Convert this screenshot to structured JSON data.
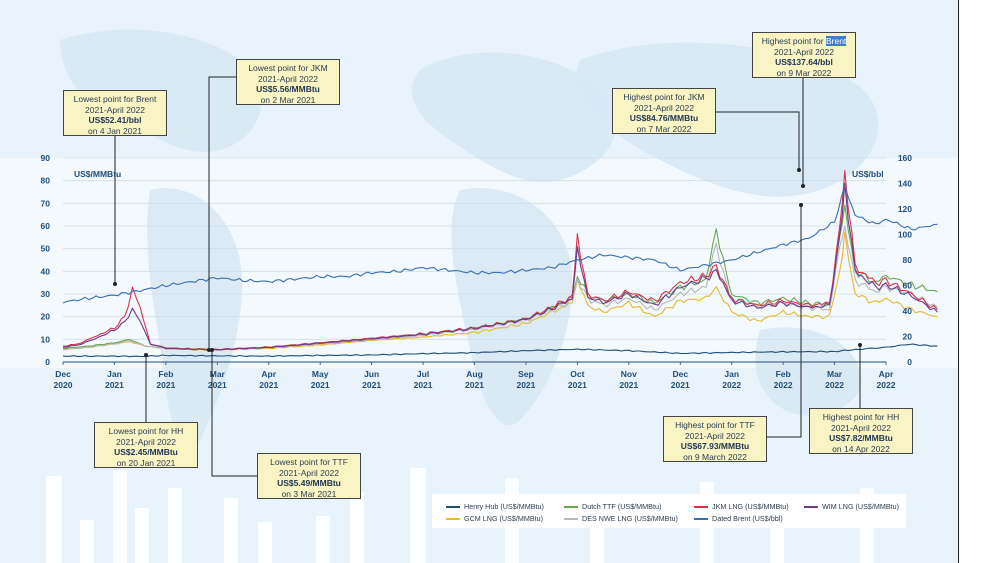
{
  "chart_data": {
    "type": "line",
    "left_axis_label": "US$/MMBtu",
    "right_axis_label": "US$/bbl",
    "y_left_range": [
      0,
      90
    ],
    "y_right_range": [
      0,
      160
    ],
    "y_left_ticks": [
      "0",
      "10",
      "20",
      "30",
      "40",
      "50",
      "60",
      "70",
      "80",
      "90"
    ],
    "y_right_ticks": [
      "0",
      "20",
      "40",
      "60",
      "80",
      "100",
      "120",
      "140",
      "160"
    ],
    "x_ticks": [
      {
        "m": "Dec",
        "y": "2020"
      },
      {
        "m": "Jan",
        "y": "2021"
      },
      {
        "m": "Feb",
        "y": "2021"
      },
      {
        "m": "Mar",
        "y": "2021"
      },
      {
        "m": "Apr",
        "y": "2021"
      },
      {
        "m": "May",
        "y": "2021"
      },
      {
        "m": "Jun",
        "y": "2021"
      },
      {
        "m": "Jul",
        "y": "2021"
      },
      {
        "m": "Aug",
        "y": "2021"
      },
      {
        "m": "Sep",
        "y": "2021"
      },
      {
        "m": "Oct",
        "y": "2021"
      },
      {
        "m": "Nov",
        "y": "2021"
      },
      {
        "m": "Dec",
        "y": "2021"
      },
      {
        "m": "Jan",
        "y": "2022"
      },
      {
        "m": "Feb",
        "y": "2022"
      },
      {
        "m": "Mar",
        "y": "2022"
      },
      {
        "m": "Apr",
        "y": "2022"
      }
    ],
    "grid": true,
    "series": [
      {
        "name": "Henry Hub (US$/MMBtu)",
        "axis": "left",
        "color": "#1f4e79",
        "points": [
          [
            0,
            2.6
          ],
          [
            1,
            2.6
          ],
          [
            1.5,
            2.45
          ],
          [
            2,
            2.9
          ],
          [
            3,
            2.7
          ],
          [
            4,
            2.6
          ],
          [
            5,
            2.9
          ],
          [
            6,
            3.1
          ],
          [
            7,
            3.7
          ],
          [
            8,
            4.1
          ],
          [
            9,
            5.0
          ],
          [
            10,
            5.6
          ],
          [
            10.5,
            5.3
          ],
          [
            11,
            5.0
          ],
          [
            12,
            3.8
          ],
          [
            12.5,
            4.0
          ],
          [
            13,
            4.2
          ],
          [
            14,
            4.5
          ],
          [
            15,
            4.6
          ],
          [
            15.4,
            5.5
          ],
          [
            16,
            6.5
          ],
          [
            16.45,
            7.82
          ],
          [
            17,
            7.0
          ]
        ]
      },
      {
        "name": "GCM LNG (US$/MMBtu)",
        "axis": "left",
        "color": "#e6b92e",
        "points": [
          [
            0,
            5.5
          ],
          [
            0.5,
            6.5
          ],
          [
            1,
            8
          ],
          [
            1.3,
            9
          ],
          [
            1.6,
            7
          ],
          [
            2,
            6
          ],
          [
            2.5,
            5.5
          ],
          [
            3,
            5.3
          ],
          [
            4,
            6
          ],
          [
            5,
            7.5
          ],
          [
            6,
            9.5
          ],
          [
            7,
            11
          ],
          [
            8,
            13
          ],
          [
            9,
            17
          ],
          [
            9.5,
            22
          ],
          [
            9.9,
            26
          ],
          [
            10,
            36
          ],
          [
            10.2,
            25
          ],
          [
            10.5,
            22
          ],
          [
            11,
            26
          ],
          [
            11.5,
            20
          ],
          [
            12,
            27
          ],
          [
            12.5,
            28
          ],
          [
            12.7,
            33
          ],
          [
            13,
            22
          ],
          [
            13.5,
            18
          ],
          [
            14,
            22
          ],
          [
            14.5,
            20
          ],
          [
            14.9,
            20
          ],
          [
            15.1,
            40
          ],
          [
            15.2,
            55
          ],
          [
            15.4,
            30
          ],
          [
            15.8,
            26
          ],
          [
            16,
            28
          ],
          [
            16.5,
            23
          ],
          [
            17,
            20
          ]
        ]
      },
      {
        "name": "Dutch TTF (US$/MMBtu)",
        "axis": "left",
        "color": "#6aa84f",
        "points": [
          [
            0,
            6
          ],
          [
            0.5,
            7
          ],
          [
            1,
            8.5
          ],
          [
            1.3,
            10
          ],
          [
            1.6,
            7
          ],
          [
            2,
            6.2
          ],
          [
            2.5,
            5.8
          ],
          [
            3,
            5.49
          ],
          [
            4,
            6.5
          ],
          [
            5,
            8.5
          ],
          [
            6,
            10
          ],
          [
            7,
            12
          ],
          [
            8,
            15
          ],
          [
            9,
            19
          ],
          [
            9.5,
            24
          ],
          [
            9.9,
            28
          ],
          [
            10,
            38
          ],
          [
            10.2,
            30
          ],
          [
            10.5,
            27
          ],
          [
            11,
            30
          ],
          [
            11.5,
            26
          ],
          [
            12,
            33
          ],
          [
            12.5,
            36
          ],
          [
            12.7,
            59
          ],
          [
            12.9,
            38
          ],
          [
            13,
            30
          ],
          [
            13.5,
            26
          ],
          [
            14,
            28
          ],
          [
            14.5,
            26
          ],
          [
            14.9,
            25
          ],
          [
            15.1,
            55
          ],
          [
            15.2,
            67.93
          ],
          [
            15.4,
            40
          ],
          [
            15.8,
            35
          ],
          [
            16,
            38
          ],
          [
            16.5,
            34
          ],
          [
            17,
            31
          ]
        ]
      },
      {
        "name": "DES NWE LNG (US$/MMBtu)",
        "axis": "left",
        "color": "#b7b7b7",
        "points": [
          [
            0,
            5.5
          ],
          [
            0.5,
            6.5
          ],
          [
            1,
            8
          ],
          [
            1.3,
            9.5
          ],
          [
            1.6,
            7
          ],
          [
            2,
            6
          ],
          [
            2.5,
            5.6
          ],
          [
            3,
            5.4
          ],
          [
            4,
            6.2
          ],
          [
            5,
            8
          ],
          [
            6,
            9.8
          ],
          [
            7,
            11.8
          ],
          [
            8,
            14.5
          ],
          [
            9,
            18.5
          ],
          [
            9.5,
            23
          ],
          [
            9.9,
            27
          ],
          [
            10,
            37
          ],
          [
            10.2,
            28
          ],
          [
            10.5,
            25
          ],
          [
            11,
            28
          ],
          [
            11.5,
            23
          ],
          [
            12,
            30
          ],
          [
            12.5,
            33
          ],
          [
            12.7,
            52
          ],
          [
            12.9,
            34
          ],
          [
            13,
            28
          ],
          [
            13.5,
            24
          ],
          [
            14,
            26
          ],
          [
            14.5,
            24
          ],
          [
            14.9,
            23
          ],
          [
            15.1,
            50
          ],
          [
            15.2,
            60
          ],
          [
            15.4,
            36
          ],
          [
            15.8,
            31
          ],
          [
            16,
            33
          ],
          [
            16.5,
            30
          ],
          [
            17,
            24
          ]
        ]
      },
      {
        "name": "JKM LNG (US$/MMBtu)",
        "axis": "left",
        "color": "#d9334a",
        "points": [
          [
            0,
            7
          ],
          [
            0.3,
            8
          ],
          [
            0.6,
            11
          ],
          [
            1,
            15
          ],
          [
            1.2,
            20
          ],
          [
            1.35,
            32
          ],
          [
            1.5,
            24
          ],
          [
            1.7,
            8
          ],
          [
            2,
            6.2
          ],
          [
            2.5,
            5.8
          ],
          [
            3,
            5.56
          ],
          [
            4,
            6.6
          ],
          [
            5,
            8.5
          ],
          [
            6,
            10.5
          ],
          [
            7,
            12.5
          ],
          [
            8,
            15
          ],
          [
            9,
            19
          ],
          [
            9.5,
            24
          ],
          [
            9.9,
            29
          ],
          [
            10,
            56
          ],
          [
            10.2,
            30
          ],
          [
            10.5,
            27
          ],
          [
            11,
            31
          ],
          [
            11.5,
            27
          ],
          [
            12,
            35
          ],
          [
            12.5,
            38
          ],
          [
            12.7,
            42
          ],
          [
            12.9,
            33
          ],
          [
            13,
            28
          ],
          [
            13.5,
            25
          ],
          [
            14,
            27
          ],
          [
            14.5,
            25
          ],
          [
            14.9,
            26
          ],
          [
            15.1,
            58
          ],
          [
            15.2,
            84.76
          ],
          [
            15.4,
            42
          ],
          [
            15.8,
            35
          ],
          [
            16,
            36
          ],
          [
            16.5,
            30
          ],
          [
            17,
            23
          ]
        ]
      },
      {
        "name": "WIM LNG (US$/MMBtu)",
        "axis": "left",
        "color": "#6b3a8c",
        "points": [
          [
            0,
            6.5
          ],
          [
            0.3,
            7.5
          ],
          [
            0.6,
            10
          ],
          [
            1,
            14
          ],
          [
            1.2,
            18
          ],
          [
            1.35,
            23
          ],
          [
            1.5,
            18
          ],
          [
            1.7,
            8
          ],
          [
            2,
            6
          ],
          [
            2.5,
            5.6
          ],
          [
            3,
            5.4
          ],
          [
            4,
            6.4
          ],
          [
            5,
            8.3
          ],
          [
            6,
            10.2
          ],
          [
            7,
            12.2
          ],
          [
            8,
            14.8
          ],
          [
            9,
            18.8
          ],
          [
            9.5,
            23.5
          ],
          [
            9.9,
            28
          ],
          [
            10,
            50
          ],
          [
            10.2,
            29
          ],
          [
            10.5,
            26
          ],
          [
            11,
            30
          ],
          [
            11.5,
            25
          ],
          [
            12,
            33
          ],
          [
            12.5,
            37
          ],
          [
            12.7,
            40
          ],
          [
            12.9,
            32
          ],
          [
            13,
            27
          ],
          [
            13.5,
            24
          ],
          [
            14,
            26
          ],
          [
            14.5,
            24
          ],
          [
            14.9,
            25
          ],
          [
            15.1,
            55
          ],
          [
            15.2,
            78
          ],
          [
            15.4,
            40
          ],
          [
            15.8,
            33
          ],
          [
            16,
            34
          ],
          [
            16.5,
            29
          ],
          [
            17,
            22
          ]
        ]
      },
      {
        "name": "Dated Brent (US$/bbl)",
        "axis": "right",
        "color": "#3a6fb0",
        "points": [
          [
            0,
            47
          ],
          [
            0.5,
            50
          ],
          [
            1,
            52.41
          ],
          [
            1.5,
            56
          ],
          [
            2,
            60
          ],
          [
            2.5,
            63
          ],
          [
            3,
            66
          ],
          [
            3.5,
            64
          ],
          [
            4,
            63
          ],
          [
            4.5,
            65
          ],
          [
            5,
            67
          ],
          [
            5.5,
            67
          ],
          [
            6,
            70
          ],
          [
            6.5,
            71
          ],
          [
            7,
            74
          ],
          [
            7.5,
            72
          ],
          [
            8,
            70
          ],
          [
            8.5,
            70
          ],
          [
            9,
            72
          ],
          [
            9.5,
            74
          ],
          [
            10,
            80
          ],
          [
            10.5,
            84
          ],
          [
            11,
            82
          ],
          [
            11.5,
            80
          ],
          [
            12,
            72
          ],
          [
            12.5,
            76
          ],
          [
            13,
            80
          ],
          [
            13.5,
            86
          ],
          [
            14,
            92
          ],
          [
            14.5,
            97
          ],
          [
            15,
            110
          ],
          [
            15.2,
            137.64
          ],
          [
            15.4,
            115
          ],
          [
            15.8,
            108
          ],
          [
            16,
            112
          ],
          [
            16.5,
            104
          ],
          [
            17,
            108
          ]
        ]
      }
    ]
  },
  "axis": {
    "left_unit": "US$/MMBtu",
    "right_unit": "US$/bbl"
  },
  "legend": [
    {
      "label": "Henry Hub (US$/MMBtu)",
      "color": "#1f4e79"
    },
    {
      "label": "Dutch TTF (US$/MMBtu)",
      "color": "#6aa84f"
    },
    {
      "label": "JKM LNG (US$/MMBtu)",
      "color": "#d9334a"
    },
    {
      "label": "WIM LNG (US$/MMBtu)",
      "color": "#6b3a8c"
    },
    {
      "label": "GCM LNG (US$/MMBtu)",
      "color": "#e6b92e"
    },
    {
      "label": "DES NWE LNG (US$/MMBtu)",
      "color": "#b7b7b7"
    },
    {
      "label": "Dated Brent (US$/bbl)",
      "color": "#3a6fb0"
    }
  ],
  "callouts": {
    "brent_low": {
      "l1": "Lowest point for Brent",
      "l2": "2021-April 2022",
      "l3": "US$52.41/bbl",
      "l4": "on 4 Jan 2021"
    },
    "jkm_low": {
      "l1": "Lowest point for JKM",
      "l2": "2021-April 2022",
      "l3": "US$5.56/MMBtu",
      "l4": "on 2 Mar 2021"
    },
    "hh_low": {
      "l1": "Lowest point for HH",
      "l2": "2021-April 2022",
      "l3": "US$2.45/MMBtu",
      "l4": "on 20 Jan 2021"
    },
    "ttf_low": {
      "l1": "Lowest point for TTF",
      "l2": "2021-April 2022",
      "l3": "US$5.49/MMBtu",
      "l4": "on 3 Mar 2021"
    },
    "jkm_high": {
      "l1": "Highest point for JKM",
      "l2": "2021-April 2022",
      "l3": "US$84.76/MMBtu",
      "l4": "on 7 Mar 2022"
    },
    "brent_high": {
      "l1a": "Highest point for ",
      "l1b": "Brent",
      "l2": "2021-April 2022",
      "l3": "US$137.64/bbl",
      "l4": "on 9 Mar 2022"
    },
    "ttf_high": {
      "l1": "Highest point for TTF",
      "l2": "2021-April 2022",
      "l3": "US$67.93/MMBtu",
      "l4": "on 9 March 2022"
    },
    "hh_high": {
      "l1": "Highest point for HH",
      "l2": "2021-April 2022",
      "l3": "US$7.82/MMBtu",
      "l4": "on 14 Apr 2022"
    }
  }
}
